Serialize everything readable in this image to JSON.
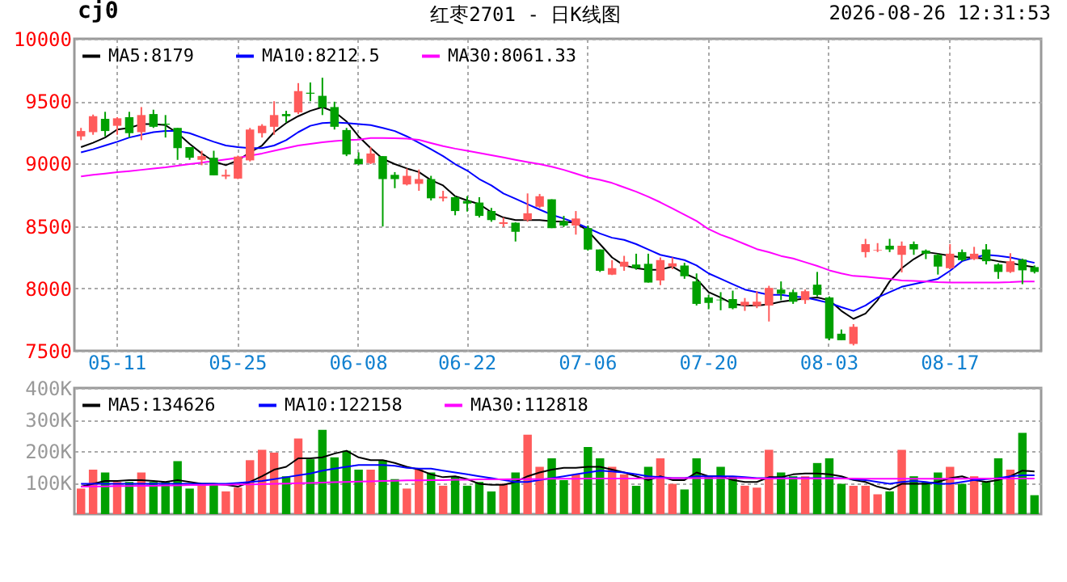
{
  "chart_data": [
    {
      "type": "candlestick",
      "title": "红枣2701 - 日K线图",
      "annotations": [
        "cj0",
        "2026-08-26 12:31:53"
      ],
      "categories": [
        null,
        null,
        null,
        "05-11",
        null,
        null,
        null,
        null,
        null,
        null,
        null,
        null,
        null,
        "05-25",
        null,
        null,
        null,
        null,
        null,
        null,
        null,
        null,
        null,
        "06-08",
        null,
        null,
        null,
        null,
        null,
        null,
        null,
        null,
        "06-22",
        null,
        null,
        null,
        null,
        null,
        null,
        null,
        null,
        null,
        "07-06",
        null,
        null,
        null,
        null,
        null,
        null,
        null,
        null,
        null,
        "07-20",
        null,
        null,
        null,
        null,
        null,
        null,
        null,
        null,
        null,
        "08-03",
        null,
        null,
        null,
        null,
        null,
        null,
        null,
        null,
        null,
        "08-17",
        null,
        null,
        null,
        null,
        null,
        null,
        null
      ],
      "ohlc": [
        [
          9218,
          9286,
          9188,
          9261
        ],
        [
          9252,
          9393,
          9231,
          9380
        ],
        [
          9359,
          9415,
          9218,
          9261
        ],
        [
          9303,
          9372,
          9231,
          9363
        ],
        [
          9372,
          9415,
          9209,
          9244
        ],
        [
          9252,
          9453,
          9188,
          9389
        ],
        [
          9397,
          9432,
          9286,
          9295
        ],
        [
          9320,
          9389,
          9209,
          9312
        ],
        [
          9286,
          9286,
          9030,
          9124
        ],
        [
          9132,
          9132,
          9030,
          9047
        ],
        [
          9030,
          9103,
          8987,
          9060
        ],
        [
          9047,
          9103,
          8906,
          8906
        ],
        [
          8897,
          8953,
          8876,
          8910
        ],
        [
          8880,
          9064,
          8876,
          9056
        ],
        [
          9026,
          9286,
          9017,
          9273
        ],
        [
          9244,
          9316,
          9209,
          9303
        ],
        [
          9295,
          9500,
          9231,
          9389
        ],
        [
          9397,
          9423,
          9329,
          9380
        ],
        [
          9410,
          9645,
          9397,
          9581
        ],
        [
          9568,
          9650,
          9500,
          9560
        ],
        [
          9543,
          9688,
          9389,
          9449
        ],
        [
          9453,
          9496,
          9273,
          9295
        ],
        [
          9269,
          9286,
          9060,
          9073
        ],
        [
          9038,
          9090,
          8987,
          8996
        ],
        [
          9004,
          9132,
          8996,
          9081
        ],
        [
          9060,
          9060,
          8496,
          8876
        ],
        [
          8910,
          8932,
          8803,
          8876
        ],
        [
          8833,
          8961,
          8825,
          8902
        ],
        [
          8838,
          8953,
          8782,
          8876
        ],
        [
          8876,
          8902,
          8705,
          8722
        ],
        [
          8722,
          8782,
          8697,
          8735
        ],
        [
          8731,
          8739,
          8586,
          8620
        ],
        [
          8701,
          8739,
          8616,
          8680
        ],
        [
          8688,
          8731,
          8568,
          8581
        ],
        [
          8620,
          8645,
          8534,
          8547
        ],
        [
          8517,
          8568,
          8492,
          8530
        ],
        [
          8526,
          8530,
          8376,
          8453
        ],
        [
          8547,
          8761,
          8534,
          8602
        ],
        [
          8654,
          8757,
          8645,
          8739
        ],
        [
          8714,
          8714,
          8483,
          8483
        ],
        [
          8538,
          8581,
          8492,
          8504
        ],
        [
          8504,
          8620,
          8431,
          8560
        ],
        [
          8483,
          8504,
          8303,
          8312
        ],
        [
          8312,
          8312,
          8132,
          8141
        ],
        [
          8111,
          8226,
          8107,
          8162
        ],
        [
          8175,
          8261,
          8141,
          8214
        ],
        [
          8192,
          8278,
          8150,
          8162
        ],
        [
          8197,
          8278,
          8047,
          8047
        ],
        [
          8064,
          8248,
          8026,
          8227
        ],
        [
          8175,
          8248,
          8154,
          8201
        ],
        [
          8184,
          8205,
          8077,
          8098
        ],
        [
          8056,
          8120,
          7863,
          7876
        ],
        [
          7927,
          7948,
          7833,
          7884
        ],
        [
          7910,
          7970,
          7825,
          7905
        ],
        [
          7914,
          7982,
          7833,
          7842
        ],
        [
          7863,
          7923,
          7820,
          7893
        ],
        [
          7859,
          7978,
          7842,
          7893
        ],
        [
          7863,
          8021,
          7735,
          8004
        ],
        [
          7991,
          8056,
          7906,
          7957
        ],
        [
          7970,
          7991,
          7876,
          7893
        ],
        [
          7906,
          7991,
          7876,
          7978
        ],
        [
          8030,
          8132,
          7936,
          7948
        ],
        [
          7927,
          7936,
          7585,
          7598
        ],
        [
          7637,
          7671,
          7585,
          7585
        ],
        [
          7555,
          7714,
          7543,
          7692
        ],
        [
          8291,
          8397,
          8248,
          8355
        ],
        [
          8303,
          8363,
          8291,
          8308
        ],
        [
          8342,
          8397,
          8291,
          8312
        ],
        [
          8269,
          8376,
          8128,
          8342
        ],
        [
          8355,
          8376,
          8269,
          8312
        ],
        [
          8303,
          8312,
          8235,
          8278
        ],
        [
          8269,
          8278,
          8111,
          8175
        ],
        [
          8162,
          8355,
          8154,
          8278
        ],
        [
          8291,
          8312,
          8218,
          8227
        ],
        [
          8235,
          8333,
          8227,
          8278
        ],
        [
          8312,
          8355,
          8192,
          8218
        ],
        [
          8192,
          8201,
          8077,
          8132
        ],
        [
          8132,
          8282,
          8124,
          8218
        ],
        [
          8231,
          8239,
          8034,
          8145
        ],
        [
          8171,
          8184,
          8120,
          8132
        ]
      ],
      "colors": [
        "#ff5b5b",
        "#ff5b5b",
        "#00a000",
        "#ff5b5b",
        "#00a000",
        "#ff5b5b",
        "#00a000",
        "#00a000",
        "#00a000",
        "#00a000",
        "#ff5b5b",
        "#00a000",
        "#ff5b5b",
        "#ff5b5b",
        "#ff5b5b",
        "#ff5b5b",
        "#ff5b5b",
        "#00a000",
        "#ff5b5b",
        "#00a000",
        "#00a000",
        "#00a000",
        "#00a000",
        "#00a000",
        "#ff5b5b",
        "#00a000",
        "#00a000",
        "#ff5b5b",
        "#ff5b5b",
        "#00a000",
        "#ff5b5b",
        "#00a000",
        "#00a000",
        "#00a000",
        "#00a000",
        "#ff5b5b",
        "#00a000",
        "#ff5b5b",
        "#ff5b5b",
        "#00a000",
        "#00a000",
        "#ff5b5b",
        "#00a000",
        "#00a000",
        "#ff5b5b",
        "#ff5b5b",
        "#00a000",
        "#00a000",
        "#ff5b5b",
        "#ff5b5b",
        "#00a000",
        "#00a000",
        "#00a000",
        "#00a000",
        "#00a000",
        "#ff5b5b",
        "#ff5b5b",
        "#ff5b5b",
        "#00a000",
        "#00a000",
        "#ff5b5b",
        "#00a000",
        "#00a000",
        "#00a000",
        "#ff5b5b",
        "#ff5b5b",
        "#ff5b5b",
        "#00a000",
        "#ff5b5b",
        "#00a000",
        "#00a000",
        "#00a000",
        "#ff5b5b",
        "#00a000",
        "#ff5b5b",
        "#00a000",
        "#00a000",
        "#ff5b5b",
        "#00a000",
        "#00a000"
      ],
      "series": [
        {
          "name": "MA5:8179",
          "type": "line",
          "color": "#000000",
          "values": [
            9132,
            9167,
            9209,
            9273,
            9286,
            9316,
            9316,
            9308,
            9244,
            9158,
            9081,
            9017,
            8987,
            9026,
            9090,
            9145,
            9252,
            9325,
            9380,
            9423,
            9453,
            9415,
            9338,
            9218,
            9124,
            9038,
            8996,
            8961,
            8932,
            8867,
            8825,
            8739,
            8705,
            8675,
            8611,
            8568,
            8547,
            8547,
            8547,
            8538,
            8534,
            8526,
            8461,
            8355,
            8248,
            8184,
            8162,
            8150,
            8150,
            8175,
            8120,
            8077,
            7970,
            7927,
            7876,
            7863,
            7863,
            7872,
            7893,
            7906,
            7919,
            7927,
            7906,
            7820,
            7756,
            7799,
            7906,
            8056,
            8162,
            8235,
            8291,
            8278,
            8261,
            8248,
            8248,
            8235,
            8218,
            8205,
            8184,
            8171
          ]
        },
        {
          "name": "MA10:8212.5",
          "type": "line",
          "color": "#0000ff",
          "values": [
            9090,
            9115,
            9145,
            9175,
            9209,
            9231,
            9252,
            9261,
            9261,
            9244,
            9209,
            9175,
            9145,
            9132,
            9124,
            9124,
            9145,
            9188,
            9252,
            9303,
            9325,
            9329,
            9325,
            9316,
            9308,
            9286,
            9261,
            9218,
            9167,
            9115,
            9060,
            8996,
            8944,
            8876,
            8825,
            8761,
            8718,
            8675,
            8632,
            8590,
            8560,
            8526,
            8483,
            8440,
            8406,
            8389,
            8355,
            8312,
            8269,
            8248,
            8227,
            8184,
            8120,
            8077,
            8034,
            7991,
            7970,
            7948,
            7948,
            7936,
            7927,
            7906,
            7884,
            7850,
            7820,
            7863,
            7927,
            7970,
            8013,
            8034,
            8056,
            8077,
            8141,
            8218,
            8248,
            8269,
            8261,
            8248,
            8227,
            8205
          ]
        },
        {
          "name": "MA30:8061.33",
          "type": "line",
          "color": "#ff00ff",
          "values": [
            8897,
            8910,
            8920,
            8932,
            8940,
            8950,
            8961,
            8970,
            8983,
            8996,
            9008,
            9021,
            9034,
            9047,
            9064,
            9081,
            9103,
            9124,
            9145,
            9158,
            9171,
            9180,
            9188,
            9192,
            9205,
            9205,
            9203,
            9200,
            9190,
            9165,
            9140,
            9120,
            9103,
            9085,
            9068,
            9050,
            9030,
            9012,
            8996,
            8975,
            8950,
            8920,
            8889,
            8870,
            8845,
            8810,
            8775,
            8735,
            8690,
            8640,
            8590,
            8540,
            8475,
            8430,
            8395,
            8355,
            8315,
            8290,
            8260,
            8240,
            8210,
            8180,
            8145,
            8120,
            8100,
            8094,
            8085,
            8077,
            8064,
            8060,
            8056,
            8050,
            8047,
            8047,
            8047,
            8047,
            8047,
            8050,
            8056,
            8056
          ]
        }
      ],
      "ylim": [
        7500,
        10000
      ],
      "yticks": [
        7500,
        8000,
        8500,
        9000,
        9500,
        10000
      ],
      "grid": true,
      "legend": "top left"
    },
    {
      "type": "bar",
      "categories": [
        null,
        null,
        null,
        null,
        null,
        null,
        null,
        null,
        null,
        null,
        null,
        null,
        null,
        null,
        null,
        null,
        null,
        null,
        null,
        null,
        null,
        null,
        null,
        null,
        null,
        null,
        null,
        null,
        null,
        null,
        null,
        null,
        null,
        null,
        null,
        null,
        null,
        null,
        null,
        null,
        null,
        null,
        null,
        null,
        null,
        null,
        null,
        null,
        null,
        null,
        null,
        null,
        null,
        null,
        null,
        null,
        null,
        null,
        null,
        null,
        null,
        null,
        null,
        null,
        null,
        null,
        null,
        null,
        null,
        null,
        null,
        null,
        null,
        null,
        null,
        null,
        null,
        null,
        null,
        null
      ],
      "series": [
        {
          "type": "bar",
          "colors": [
            "#ff5b5b",
            "#ff5b5b",
            "#00a000",
            "#ff5b5b",
            "#00a000",
            "#ff5b5b",
            "#00a000",
            "#00a000",
            "#00a000",
            "#00a000",
            "#ff5b5b",
            "#00a000",
            "#ff5b5b",
            "#ff5b5b",
            "#ff5b5b",
            "#ff5b5b",
            "#ff5b5b",
            "#00a000",
            "#ff5b5b",
            "#00a000",
            "#00a000",
            "#00a000",
            "#00a000",
            "#00a000",
            "#ff5b5b",
            "#00a000",
            "#00a000",
            "#ff5b5b",
            "#ff5b5b",
            "#00a000",
            "#ff5b5b",
            "#00a000",
            "#00a000",
            "#00a000",
            "#00a000",
            "#ff5b5b",
            "#00a000",
            "#ff5b5b",
            "#ff5b5b",
            "#00a000",
            "#00a000",
            "#ff5b5b",
            "#00a000",
            "#00a000",
            "#ff5b5b",
            "#ff5b5b",
            "#00a000",
            "#00a000",
            "#ff5b5b",
            "#ff5b5b",
            "#00a000",
            "#00a000",
            "#00a000",
            "#00a000",
            "#00a000",
            "#ff5b5b",
            "#ff5b5b",
            "#ff5b5b",
            "#00a000",
            "#00a000",
            "#ff5b5b",
            "#00a000",
            "#00a000",
            "#00a000",
            "#ff5b5b",
            "#ff5b5b",
            "#ff5b5b",
            "#00a000",
            "#ff5b5b",
            "#00a000",
            "#00a000",
            "#00a000",
            "#ff5b5b",
            "#00a000",
            "#ff5b5b",
            "#00a000",
            "#00a000",
            "#ff5b5b",
            "#00a000",
            "#00a000"
          ],
          "values": [
            81000,
            141000,
            132000,
            102000,
            102000,
            132000,
            102000,
            102000,
            168000,
            81000,
            96000,
            96000,
            72000,
            84000,
            171000,
            204000,
            195000,
            120000,
            240000,
            174000,
            267000,
            180000,
            201000,
            141000,
            141000,
            171000,
            111000,
            81000,
            141000,
            132000,
            90000,
            120000,
            90000,
            102000,
            72000,
            96000,
            132000,
            252000,
            150000,
            177000,
            108000,
            126000,
            213000,
            177000,
            150000,
            126000,
            90000,
            150000,
            177000,
            96000,
            78000,
            177000,
            120000,
            150000,
            120000,
            90000,
            84000,
            204000,
            132000,
            120000,
            120000,
            162000,
            177000,
            96000,
            90000,
            90000,
            63000,
            72000,
            204000,
            120000,
            102000,
            132000,
            150000,
            96000,
            120000,
            102000,
            177000,
            141000,
            258000,
            60000
          ]
        },
        {
          "name": "MA5:134626",
          "type": "line",
          "color": "#000000",
          "values": [
            87000,
            96000,
            105000,
            105000,
            108000,
            108000,
            105000,
            102000,
            108000,
            102000,
            96000,
            96000,
            93000,
            87000,
            102000,
            120000,
            141000,
            150000,
            177000,
            177000,
            180000,
            192000,
            201000,
            180000,
            171000,
            171000,
            162000,
            150000,
            141000,
            126000,
            117000,
            120000,
            111000,
            96000,
            93000,
            93000,
            102000,
            120000,
            132000,
            141000,
            147000,
            147000,
            150000,
            150000,
            141000,
            132000,
            120000,
            108000,
            120000,
            108000,
            108000,
            132000,
            120000,
            120000,
            108000,
            102000,
            102000,
            117000,
            117000,
            126000,
            129000,
            129000,
            126000,
            120000,
            108000,
            102000,
            87000,
            78000,
            96000,
            96000,
            96000,
            102000,
            114000,
            120000,
            108000,
            102000,
            108000,
            120000,
            138000,
            135000
          ]
        },
        {
          "name": "MA10:122158",
          "type": "line",
          "color": "#0000ff",
          "values": [
            96000,
            96000,
            96000,
            96000,
            96000,
            96000,
            96000,
            96000,
            96000,
            96000,
            96000,
            96000,
            96000,
            99000,
            102000,
            105000,
            111000,
            117000,
            123000,
            129000,
            138000,
            144000,
            150000,
            156000,
            156000,
            156000,
            153000,
            147000,
            144000,
            144000,
            138000,
            132000,
            126000,
            120000,
            114000,
            108000,
            102000,
            102000,
            108000,
            114000,
            120000,
            126000,
            132000,
            138000,
            135000,
            132000,
            126000,
            120000,
            117000,
            114000,
            114000,
            120000,
            120000,
            120000,
            120000,
            117000,
            114000,
            114000,
            114000,
            114000,
            114000,
            114000,
            114000,
            114000,
            111000,
            108000,
            102000,
            96000,
            102000,
            105000,
            102000,
            96000,
            96000,
            102000,
            108000,
            111000,
            114000,
            120000,
            123000,
            123000
          ]
        },
        {
          "name": "MA30:112818",
          "type": "line",
          "color": "#ff00ff",
          "values": [
            87000,
            88000,
            88000,
            89000,
            89000,
            90000,
            90000,
            91000,
            91000,
            92000,
            92000,
            93000,
            93000,
            94000,
            94000,
            95000,
            96000,
            97000,
            98000,
            99000,
            100000,
            101000,
            102000,
            103000,
            104000,
            105000,
            106000,
            107000,
            107000,
            108000,
            108000,
            109000,
            109000,
            110000,
            110000,
            110000,
            111000,
            111000,
            111000,
            112000,
            112000,
            112000,
            113000,
            113000,
            113000,
            113000,
            113000,
            114000,
            114000,
            114000,
            114000,
            114000,
            114000,
            114000,
            114000,
            114000,
            113000,
            113000,
            113000,
            113000,
            113000,
            113000,
            113000,
            113000,
            113000,
            112000,
            112000,
            112000,
            112000,
            112000,
            112000,
            112000,
            112000,
            112000,
            113000,
            113000,
            113000,
            113000,
            113000,
            113000
          ]
        }
      ],
      "ylim": [
        0,
        400000
      ],
      "yticks": [
        {
          "value": 100000,
          "label": "100K"
        },
        {
          "value": 200000,
          "label": "200K"
        },
        {
          "value": 300000,
          "label": "300K"
        },
        {
          "value": 400000,
          "label": "400K"
        }
      ],
      "grid": "y",
      "legend": "top left",
      "tick_labels": "y"
    }
  ]
}
